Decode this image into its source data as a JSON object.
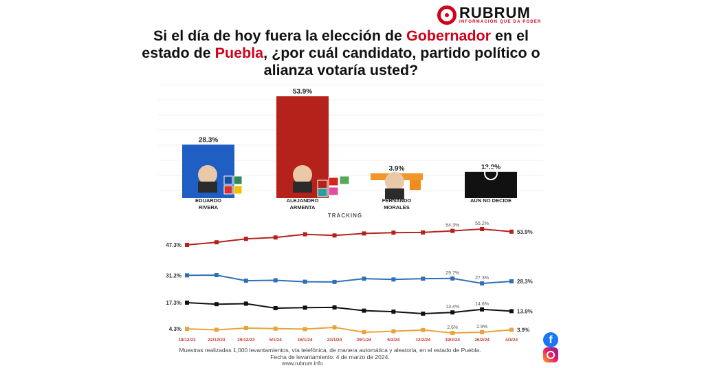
{
  "brand": {
    "name": "RUBRUM",
    "tagline": "INFORMACIÓN QUE DA PODER"
  },
  "title": {
    "part1": "Si el día de hoy fuera la elección de ",
    "hl1": "Gobernador",
    "part2": " en el estado de ",
    "hl2": "Puebla",
    "part3": ", ¿por cuál candidato, partido político o alianza votaría usted?"
  },
  "chart_data": [
    {
      "type": "bar",
      "categories": [
        "EDUARDO RIVERA",
        "ALEJANDRO ARMENTA",
        "FERNANDO MORALES",
        "AÚN NO DECIDE"
      ],
      "values": [
        28.3,
        53.9,
        3.9,
        13.9
      ],
      "value_labels": [
        "28.3%",
        "53.9%",
        "3.9%",
        "13.9%"
      ],
      "colors": [
        "#1f5fc4",
        "#b5221b",
        "#f0962b",
        "#111111"
      ],
      "ylim": [
        0,
        55
      ]
    },
    {
      "type": "line",
      "title": "TRACKING",
      "x": [
        "18/12/23",
        "22/12/23",
        "29/12/23",
        "5/1/24",
        "16/1/24",
        "22/1/24",
        "29/1/24",
        "6/2/24",
        "12/2/24",
        "19/2/24",
        "26/2/24",
        "4/3/24"
      ],
      "series": [
        {
          "color": "#b5221b",
          "values": [
            47.3,
            48.6,
            50.3,
            51.0,
            52.6,
            52.0,
            53.0,
            53.4,
            53.5,
            54.3,
            55.2,
            53.9
          ]
        },
        {
          "color": "#2f6fb8",
          "values": [
            31.2,
            31.3,
            28.6,
            28.8,
            28.1,
            28.0,
            29.6,
            29.2,
            29.6,
            29.7,
            27.3,
            28.3
          ]
        },
        {
          "color": "#111111",
          "values": [
            17.3,
            16.7,
            16.9,
            15.1,
            15.3,
            15.4,
            14.1,
            13.7,
            12.9,
            13.4,
            14.6,
            13.9
          ]
        },
        {
          "color": "#e8a33c",
          "values": [
            4.3,
            3.9,
            4.6,
            4.4,
            4.2,
            4.9,
            2.9,
            3.3,
            3.8,
            2.6,
            2.9,
            3.9
          ]
        }
      ],
      "annotations": [
        {
          "series": 0,
          "index": 0,
          "text": "47.3%"
        },
        {
          "series": 0,
          "index": 9,
          "text": "54.3%"
        },
        {
          "series": 0,
          "index": 10,
          "text": "55.2%"
        },
        {
          "series": 0,
          "index": 11,
          "text": "53.9%"
        },
        {
          "series": 1,
          "index": 0,
          "text": "31.2%"
        },
        {
          "series": 1,
          "index": 9,
          "text": "29.7%"
        },
        {
          "series": 1,
          "index": 10,
          "text": "27.3%"
        },
        {
          "series": 1,
          "index": 11,
          "text": "28.3%"
        },
        {
          "series": 2,
          "index": 0,
          "text": "17.3%"
        },
        {
          "series": 2,
          "index": 9,
          "text": "13.4%"
        },
        {
          "series": 2,
          "index": 10,
          "text": "14.6%"
        },
        {
          "series": 2,
          "index": 11,
          "text": "13.9%"
        },
        {
          "series": 3,
          "index": 0,
          "text": "4.3%"
        },
        {
          "series": 3,
          "index": 9,
          "text": "2.6%"
        },
        {
          "series": 3,
          "index": 10,
          "text": "2.9%"
        },
        {
          "series": 3,
          "index": 11,
          "text": "3.9%"
        }
      ]
    }
  ],
  "footnote": {
    "line1": "Muestras realizadas 1,000 levantamientos, vía telefónica, de manera automática y aleatoria, en el estado de Puebla.",
    "line2": "Fecha de levantamiento: 4 de marzo de 2024."
  },
  "site": "www.rubrum.info",
  "icons": [
    "facebook-icon",
    "instagram-icon",
    "person-silhouette-icon"
  ]
}
